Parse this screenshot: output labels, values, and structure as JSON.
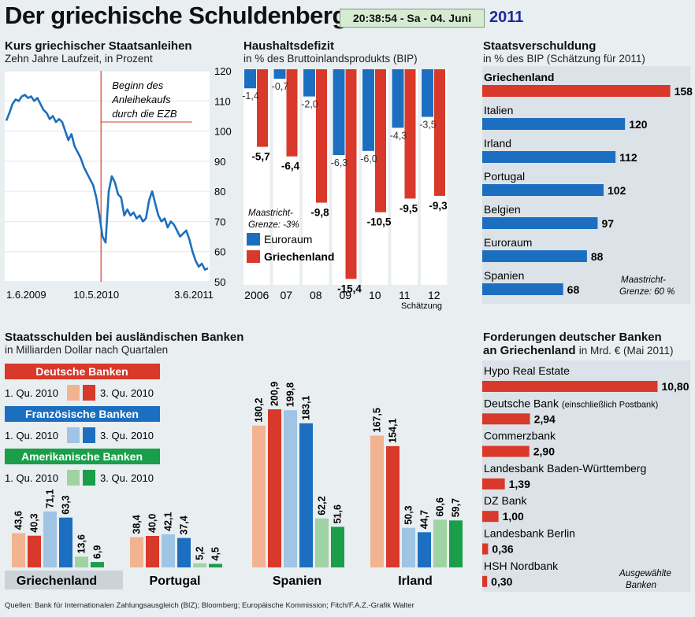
{
  "header": {
    "title": "Der griechische Schuldenberg",
    "clock": "20:38:54  - Sa - 04. Juni",
    "year": "2011"
  },
  "colors": {
    "blue": "#1c6fc0",
    "red": "#d8392a",
    "green": "#1a9e4a",
    "light_blue": "#9fc4e4",
    "light_red": "#f2b391",
    "light_green": "#9fd3a3"
  },
  "chart_data": [
    {
      "type": "line",
      "title": "Kurs griechischer Staatsanleihen",
      "subtitle": "Zehn Jahre Laufzeit, in Prozent",
      "ylim": [
        50,
        120
      ],
      "yticks": [
        "120",
        "110",
        "100",
        "90",
        "80",
        "70",
        "60",
        "50"
      ],
      "xticks": [
        "1.6.2009",
        "10.5.2010",
        "3.6.2011"
      ],
      "annotation": "Beginn des Anleihekaufs durch die EZB",
      "values": [
        103.5,
        106,
        109,
        110.5,
        110,
        111.5,
        112,
        111,
        111.5,
        110,
        111,
        109,
        107,
        106,
        104,
        105,
        103,
        104,
        103,
        100,
        97,
        99,
        95,
        93,
        91,
        88,
        86,
        84,
        82,
        78,
        72,
        65,
        63,
        80,
        85,
        83,
        79,
        78,
        72,
        74,
        72,
        73,
        71,
        72,
        70,
        71,
        77,
        80,
        76,
        72,
        70,
        71,
        68,
        70,
        69,
        67,
        65,
        66,
        67,
        64,
        60,
        57,
        55,
        56,
        54,
        54.5
      ]
    },
    {
      "type": "bar",
      "title": "Haushaltsdefizit",
      "subtitle": "in % des Bruttoinlandsprodukts (BIP)",
      "categories": [
        "2006",
        "07",
        "08",
        "09",
        "10",
        "11",
        "12"
      ],
      "note": "Schätzung",
      "legend_note": "Maastricht-Grenze: -3%",
      "series": [
        {
          "name": "Euroraum",
          "values": [
            -1.4,
            -0.7,
            -2.0,
            -6.3,
            -6.0,
            -4.3,
            -3.5
          ],
          "labels": [
            "-1,4",
            "-0,7",
            "-2,0",
            "-6,3",
            "-6,0",
            "-4,3",
            "-3,5"
          ]
        },
        {
          "name": "Griechenland",
          "values": [
            -5.7,
            -6.4,
            -9.8,
            -15.4,
            -10.5,
            -9.5,
            -9.3
          ],
          "labels": [
            "-5,7",
            "-6,4",
            "-9,8",
            "-15,4",
            "-10,5",
            "-9,5",
            "-9,3"
          ]
        }
      ]
    },
    {
      "type": "bar",
      "title": "Staatsverschuldung",
      "subtitle": "in % des BIP (Schätzung für 2011)",
      "categories": [
        "Griechenland",
        "Italien",
        "Irland",
        "Portugal",
        "Belgien",
        "Euroraum",
        "Spanien"
      ],
      "values": [
        158,
        120,
        112,
        102,
        97,
        88,
        68
      ],
      "labels": [
        "158",
        "120",
        "112",
        "102",
        "97",
        "88",
        "68"
      ],
      "note": "Maastricht-Grenze: 60 %"
    },
    {
      "type": "bar",
      "title": "Staatsschulden bei ausländischen Banken",
      "subtitle": "in Milliarden Dollar nach Quartalen",
      "categories": [
        "Griechenland",
        "Portugal",
        "Spanien",
        "Irland"
      ],
      "legend": [
        {
          "name": "Deutsche Banken",
          "q1": "1. Qu. 2010",
          "q3": "3. Qu. 2010"
        },
        {
          "name": "Französische Banken",
          "q1": "1. Qu. 2010",
          "q3": "3. Qu. 2010"
        },
        {
          "name": "Amerikanische Banken",
          "q1": "1. Qu. 2010",
          "q3": "3. Qu. 2010"
        }
      ],
      "series": [
        {
          "name": "Deutsche Banken 1. Qu. 2010",
          "values": [
            43.6,
            38.4,
            180.2,
            167.5
          ],
          "labels": [
            "43,6",
            "38,4",
            "180,2",
            "167,5"
          ]
        },
        {
          "name": "Deutsche Banken 3. Qu. 2010",
          "values": [
            40.3,
            40.0,
            200.9,
            154.1
          ],
          "labels": [
            "40,3",
            "40,0",
            "200,9",
            "154,1"
          ]
        },
        {
          "name": "Französische Banken 1. Qu. 2010",
          "values": [
            71.1,
            42.1,
            199.8,
            50.3
          ],
          "labels": [
            "71,1",
            "42,1",
            "199,8",
            "50,3"
          ]
        },
        {
          "name": "Französische Banken 3. Qu. 2010",
          "values": [
            63.3,
            37.4,
            183.1,
            44.7
          ],
          "labels": [
            "63,3",
            "37,4",
            "183,1",
            "44,7"
          ]
        },
        {
          "name": "Amerikanische Banken 1. Qu. 2010",
          "values": [
            13.6,
            5.2,
            62.2,
            60.6
          ],
          "labels": [
            "13,6",
            "5,2",
            "62,2",
            "60,6"
          ]
        },
        {
          "name": "Amerikanische Banken 3. Qu. 2010",
          "values": [
            6.9,
            4.5,
            51.6,
            59.7
          ],
          "labels": [
            "6,9",
            "4,5",
            "51,6",
            "59,7"
          ]
        }
      ]
    },
    {
      "type": "bar",
      "title": "Forderungen deutscher Banken",
      "subtitle_bold": "an Griechenland",
      "subtitle": "in Mrd. € (Mai 2011)",
      "categories": [
        "Hypo Real Estate",
        "Deutsche Bank",
        "Commerzbank",
        "Landesbank Baden-Württemberg",
        "DZ Bank",
        "Landesbank Berlin",
        "HSH Nordbank"
      ],
      "category_notes": [
        "",
        "(einschließlich Postbank)",
        "",
        "",
        "",
        "",
        ""
      ],
      "values": [
        10.8,
        2.94,
        2.9,
        1.39,
        1.0,
        0.36,
        0.3
      ],
      "labels": [
        "10,80",
        "2,94",
        "2,90",
        "1,39",
        "1,00",
        "0,36",
        "0,30"
      ],
      "note": "Ausgewählte Banken"
    }
  ],
  "footer": "Quellen: Bank für Internationalen Zahlungsausgleich (BIZ); Bloomberg; Europäische Kommission; Fitch/F.A.Z.-Grafik Walter"
}
